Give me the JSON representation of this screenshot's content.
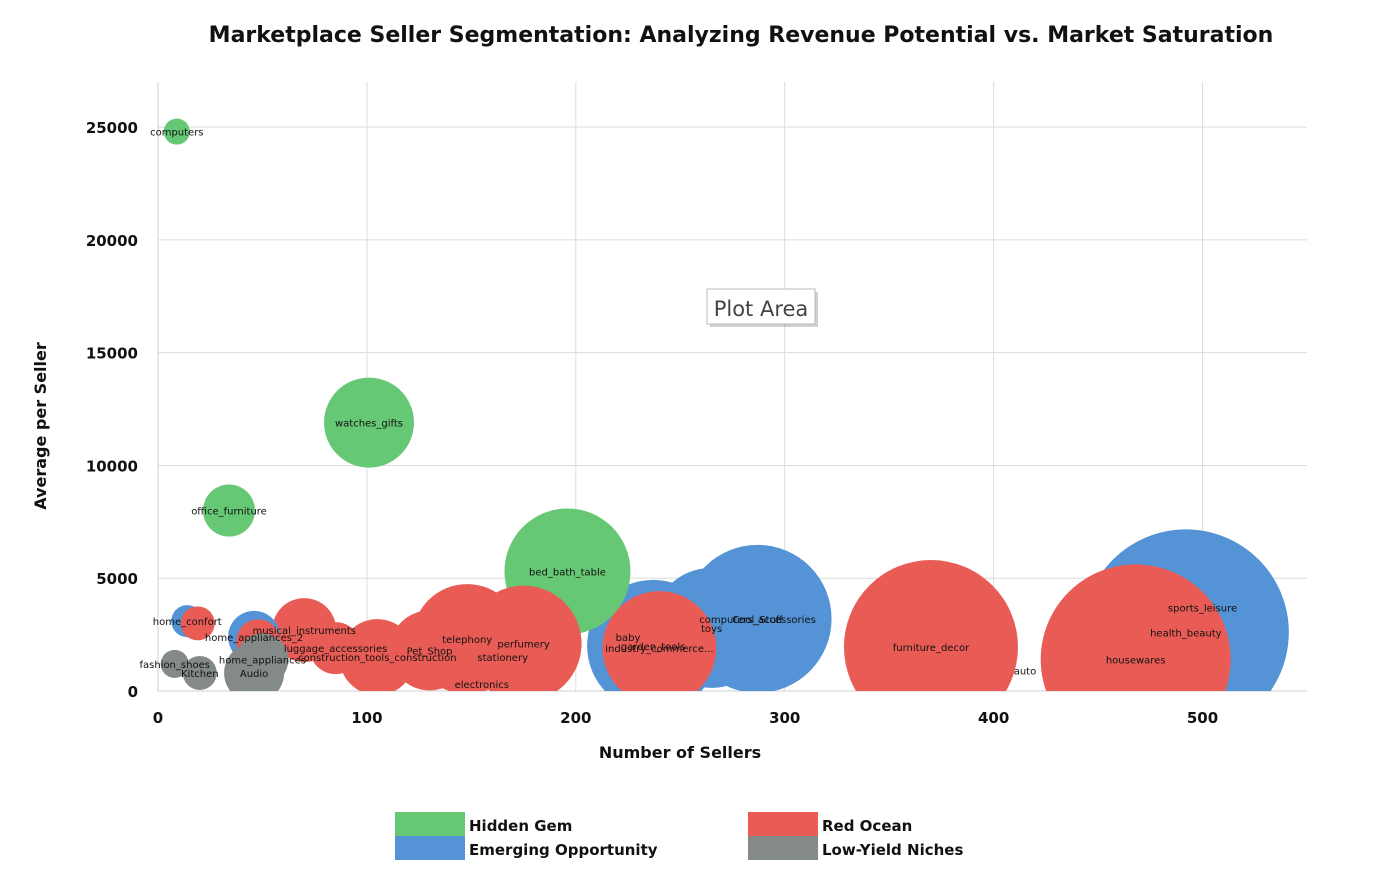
{
  "chart_data": {
    "type": "bubble",
    "title": "Marketplace Seller Segmentation: Analyzing Revenue Potential vs. Market Saturation",
    "xlabel": "Number of Sellers",
    "ylabel": "Average per Seller",
    "xlim": [
      0,
      550
    ],
    "ylim": [
      0,
      27000
    ],
    "xticks": [
      0,
      100,
      200,
      300,
      400,
      500
    ],
    "yticks": [
      0,
      5000,
      10000,
      15000,
      20000,
      25000
    ],
    "grid": true,
    "legend_position": "bottom",
    "tooltip": "Plot Area",
    "segments": [
      {
        "name": "Hidden Gem",
        "color": "#66c875"
      },
      {
        "name": "Red Ocean",
        "color": "#e95c56"
      },
      {
        "name": "Emerging Opportunity",
        "color": "#5393d6"
      },
      {
        "name": "Low-Yield Niches",
        "color": "#838a88"
      }
    ],
    "points": [
      {
        "label": "health_beauty",
        "segment": "Emerging Opportunity",
        "x": 492,
        "y": 2600,
        "r": 103
      },
      {
        "label": "sports_leisure",
        "segment": "Emerging Opportunity",
        "x": 500,
        "y": 3700,
        "r": 0
      },
      {
        "label": "housewares",
        "segment": "Red Ocean",
        "x": 468,
        "y": 1400,
        "r": 95
      },
      {
        "label": "auto",
        "segment": "Red Ocean",
        "x": 415,
        "y": 900,
        "r": 0
      },
      {
        "label": "computers_accessories",
        "segment": "Emerging Opportunity",
        "x": 287,
        "y": 3200,
        "r": 74
      },
      {
        "label": "Cool_Stuff",
        "segment": "Emerging Opportunity",
        "x": 287,
        "y": 3200,
        "r": 0
      },
      {
        "label": "toys",
        "segment": "Emerging Opportunity",
        "x": 265,
        "y": 2800,
        "r": 60
      },
      {
        "label": "garden_tools",
        "segment": "Emerging Opportunity",
        "x": 237,
        "y": 2000,
        "r": 66
      },
      {
        "label": "baby",
        "segment": "Emerging Opportunity",
        "x": 225,
        "y": 2400,
        "r": 0
      },
      {
        "label": "industry_commerce...",
        "segment": "Red Ocean",
        "x": 240,
        "y": 1900,
        "r": 57
      },
      {
        "label": "furniture_decor",
        "segment": "Red Ocean",
        "x": 370,
        "y": 1950,
        "r": 87
      },
      {
        "label": "bed_bath_table",
        "segment": "Hidden Gem",
        "x": 196,
        "y": 5300,
        "r": 63
      },
      {
        "label": "perfumery",
        "segment": "Red Ocean",
        "x": 175,
        "y": 2100,
        "r": 58
      },
      {
        "label": "stationery",
        "segment": "Red Ocean",
        "x": 165,
        "y": 1500,
        "r": 0
      },
      {
        "label": "telephony",
        "segment": "Red Ocean",
        "x": 148,
        "y": 2300,
        "r": 55
      },
      {
        "label": "Pet_Shop",
        "segment": "Red Ocean",
        "x": 130,
        "y": 1800,
        "r": 40
      },
      {
        "label": "construction_tools_construction",
        "segment": "Red Ocean",
        "x": 105,
        "y": 1500,
        "r": 38
      },
      {
        "label": "electronics",
        "segment": "Red Ocean",
        "x": 155,
        "y": 300,
        "r": 0
      },
      {
        "label": "musical_instruments",
        "segment": "Red Ocean",
        "x": 70,
        "y": 2700,
        "r": 32
      },
      {
        "label": "luggage_accessories",
        "segment": "Red Ocean",
        "x": 85,
        "y": 1900,
        "r": 26
      },
      {
        "label": "watches_gifts",
        "segment": "Hidden Gem",
        "x": 101,
        "y": 11900,
        "r": 45
      },
      {
        "label": "office_furniture",
        "segment": "Hidden Gem",
        "x": 34,
        "y": 8000,
        "r": 26
      },
      {
        "label": "computers",
        "segment": "Hidden Gem",
        "x": 9,
        "y": 24800,
        "r": 13
      },
      {
        "label": "home_confort",
        "segment": "Emerging Opportunity",
        "x": 14,
        "y": 3100,
        "r": 16
      },
      {
        "label": "",
        "segment": "Red Ocean",
        "x": 19,
        "y": 3000,
        "r": 17
      },
      {
        "label": "home_appliances_2",
        "segment": "Emerging Opportunity",
        "x": 46,
        "y": 2400,
        "r": 26
      },
      {
        "label": "",
        "segment": "Red Ocean",
        "x": 48,
        "y": 2200,
        "r": 22
      },
      {
        "label": "home_appliances",
        "segment": "Low-Yield Niches",
        "x": 50,
        "y": 1400,
        "r": 26
      },
      {
        "label": "Audio",
        "segment": "Low-Yield Niches",
        "x": 46,
        "y": 800,
        "r": 30
      },
      {
        "label": "Kitchen",
        "segment": "Low-Yield Niches",
        "x": 20,
        "y": 800,
        "r": 17
      },
      {
        "label": "fashion_shoes",
        "segment": "Low-Yield Niches",
        "x": 8,
        "y": 1200,
        "r": 14
      }
    ]
  }
}
